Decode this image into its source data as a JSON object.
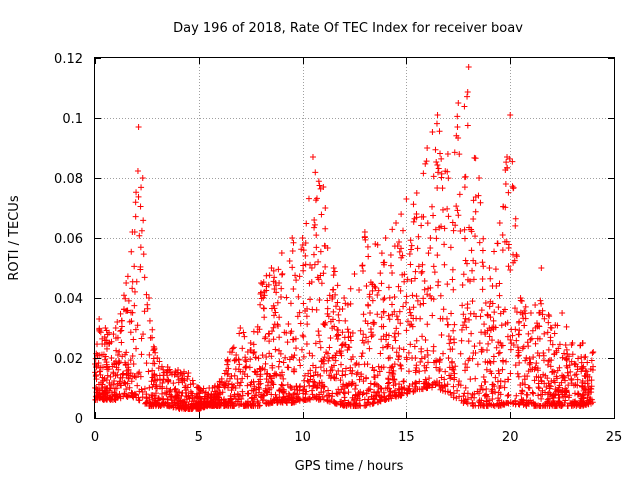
{
  "chart_data": {
    "type": "scatter",
    "title": "Day 196 of 2018, Rate Of TEC Index for receiver boav",
    "xlabel": "GPS time / hours",
    "ylabel": "ROTI / TECUs",
    "xlim": [
      0,
      25
    ],
    "ylim": [
      0,
      0.12
    ],
    "xticks": [
      0,
      5,
      10,
      15,
      20,
      25
    ],
    "xtick_labels": [
      "0",
      "5",
      "10",
      "15",
      "20",
      "25"
    ],
    "yticks": [
      0,
      0.02,
      0.04,
      0.06,
      0.08,
      0.1,
      0.12
    ],
    "ytick_labels": [
      "0",
      "0.02",
      "0.04",
      "0.06",
      "0.08",
      "0.1",
      "0.12"
    ],
    "grid": true,
    "marker": "+",
    "color": "#ff0000",
    "series": [
      {
        "name": "ROTI",
        "envelope": {
          "hours": [
            0,
            0.2,
            0.5,
            1.0,
            1.5,
            1.8,
            2.1,
            2.3,
            2.6,
            3.0,
            3.5,
            4.0,
            4.5,
            5.0,
            5.5,
            6.0,
            6.5,
            7.0,
            7.5,
            8.0,
            8.5,
            9.0,
            9.5,
            10.0,
            10.5,
            11.0,
            11.5,
            12.0,
            12.5,
            13.0,
            13.5,
            14.0,
            14.5,
            15.0,
            15.5,
            16.0,
            16.5,
            17.0,
            17.5,
            18.0,
            18.5,
            19.0,
            19.5,
            20.0,
            20.5,
            21.0,
            21.5,
            22.0,
            22.5,
            23.0,
            23.5,
            24.0
          ],
          "low": [
            0.006,
            0.006,
            0.006,
            0.006,
            0.007,
            0.007,
            0.006,
            0.005,
            0.004,
            0.004,
            0.004,
            0.003,
            0.003,
            0.003,
            0.004,
            0.004,
            0.004,
            0.004,
            0.004,
            0.004,
            0.005,
            0.005,
            0.005,
            0.006,
            0.006,
            0.006,
            0.005,
            0.004,
            0.004,
            0.004,
            0.005,
            0.006,
            0.007,
            0.008,
            0.009,
            0.01,
            0.01,
            0.008,
            0.006,
            0.004,
            0.004,
            0.004,
            0.004,
            0.005,
            0.004,
            0.004,
            0.004,
            0.004,
            0.004,
            0.004,
            0.004,
            0.005
          ],
          "high": [
            0.018,
            0.033,
            0.03,
            0.03,
            0.045,
            0.062,
            0.097,
            0.08,
            0.04,
            0.02,
            0.017,
            0.016,
            0.015,
            0.01,
            0.01,
            0.012,
            0.022,
            0.03,
            0.025,
            0.045,
            0.05,
            0.055,
            0.06,
            0.06,
            0.087,
            0.077,
            0.05,
            0.04,
            0.048,
            0.062,
            0.058,
            0.06,
            0.065,
            0.073,
            0.075,
            0.09,
            0.101,
            0.088,
            0.105,
            0.117,
            0.08,
            0.05,
            0.065,
            0.101,
            0.04,
            0.035,
            0.05,
            0.03,
            0.035,
            0.025,
            0.025,
            0.022
          ]
        }
      }
    ]
  }
}
